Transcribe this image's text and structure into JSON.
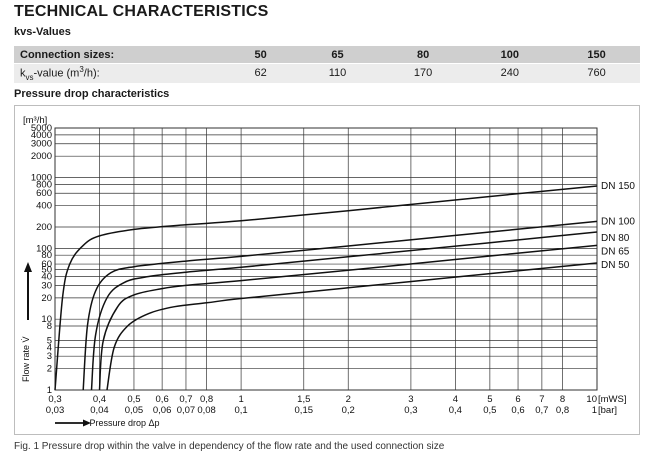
{
  "page": {
    "title": "TECHNICAL CHARACTERISTICS",
    "kvs_title": "kvs-Values",
    "section_title": "Pressure drop characteristics",
    "caption": "Fig. 1 Pressure drop within the valve in dependency of the flow rate and the used connection size"
  },
  "table": {
    "header_label": "Connection sizes:",
    "row_label_main": "k",
    "row_label_sub": "vs",
    "row_label_rest": "-value (m",
    "row_label_sup": "3",
    "row_label_end": "/h):",
    "sizes": [
      "50",
      "65",
      "80",
      "100",
      "150"
    ],
    "values": [
      "62",
      "110",
      "170",
      "240",
      "760"
    ]
  },
  "chart_data": {
    "type": "line",
    "x_scale": "log",
    "y_scale": "log",
    "xlim": [
      0.3,
      10
    ],
    "ylim": [
      1,
      5000
    ],
    "x_ticks_mws": [
      "0,3",
      "0,4",
      "0,5",
      "0,6",
      "0,7",
      "0,8",
      "1",
      "1,5",
      "2",
      "3",
      "4",
      "5",
      "6",
      "7",
      "8",
      "10"
    ],
    "x_ticks_bar": [
      "0,03",
      "0,04",
      "0,05",
      "0,06",
      "0,07",
      "0,08",
      "0,1",
      "0,15",
      "0,2",
      "0,3",
      "0,4",
      "0,5",
      "0,6",
      "0,7",
      "0,8",
      "1"
    ],
    "x_unit_mws": "[mWS]",
    "x_unit_bar": "[bar]",
    "y_ticks": [
      "1",
      "2",
      "3",
      "4",
      "5",
      "8",
      "10",
      "20",
      "30",
      "40",
      "50",
      "60",
      "80",
      "100",
      "200",
      "400",
      "600",
      "800",
      "1000",
      "2000",
      "3000",
      "4000",
      "5000"
    ],
    "y_unit": "[m³/h]",
    "y_axis_title": "Flow rate V̇",
    "x_axis_title": "Pressure drop Δp",
    "series": [
      {
        "name": "DN 150",
        "kvs": 760,
        "points": [
          [
            0.3,
            1
          ],
          [
            0.315,
            20
          ],
          [
            0.33,
            60
          ],
          [
            0.36,
            110
          ],
          [
            0.4,
            150
          ],
          [
            0.5,
            185
          ],
          [
            0.7,
            215
          ],
          [
            1,
            245
          ],
          [
            2,
            340
          ],
          [
            5,
            540
          ],
          [
            10,
            760
          ]
        ]
      },
      {
        "name": "DN 100",
        "kvs": 240,
        "points": [
          [
            0.36,
            1
          ],
          [
            0.37,
            8
          ],
          [
            0.39,
            25
          ],
          [
            0.43,
            45
          ],
          [
            0.5,
            55
          ],
          [
            0.7,
            66
          ],
          [
            1,
            77
          ],
          [
            2,
            108
          ],
          [
            5,
            170
          ],
          [
            10,
            240
          ]
        ]
      },
      {
        "name": "DN 80",
        "kvs": 170,
        "points": [
          [
            0.38,
            1
          ],
          [
            0.39,
            6
          ],
          [
            0.42,
            20
          ],
          [
            0.47,
            33
          ],
          [
            0.55,
            40
          ],
          [
            0.7,
            46
          ],
          [
            1,
            54
          ],
          [
            2,
            76
          ],
          [
            5,
            120
          ],
          [
            10,
            170
          ]
        ]
      },
      {
        "name": "DN 65",
        "kvs": 110,
        "points": [
          [
            0.4,
            1
          ],
          [
            0.41,
            5
          ],
          [
            0.45,
            15
          ],
          [
            0.5,
            22
          ],
          [
            0.6,
            27
          ],
          [
            0.7,
            30
          ],
          [
            1,
            35
          ],
          [
            2,
            49
          ],
          [
            5,
            78
          ],
          [
            10,
            110
          ]
        ]
      },
      {
        "name": "DN 50",
        "kvs": 62,
        "points": [
          [
            0.42,
            1
          ],
          [
            0.44,
            4
          ],
          [
            0.48,
            8
          ],
          [
            0.55,
            12
          ],
          [
            0.65,
            15
          ],
          [
            0.8,
            17
          ],
          [
            1,
            19.6
          ],
          [
            2,
            27.7
          ],
          [
            5,
            44
          ],
          [
            10,
            62
          ]
        ]
      }
    ]
  }
}
